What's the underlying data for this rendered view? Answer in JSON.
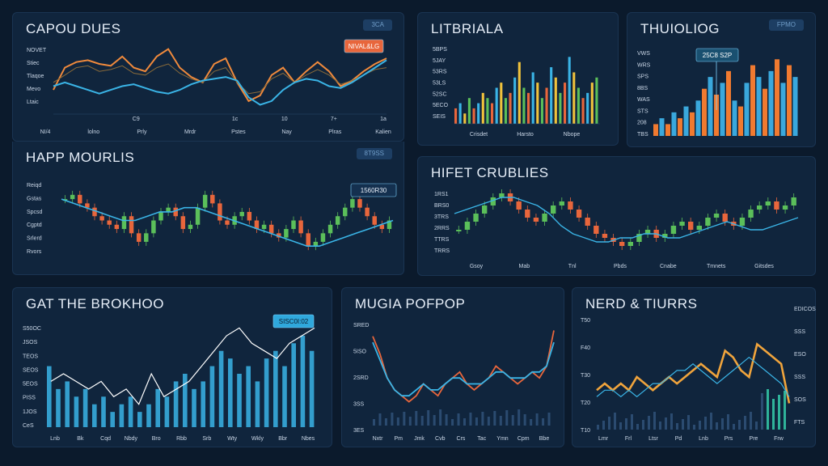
{
  "chart_data": [
    {
      "id": "p1",
      "type": "line",
      "title": "CAPOU DUES",
      "badge": "3CA",
      "callout": "NIVAL&LG",
      "ylabels": [
        "NOVET",
        "Stiec",
        "Tlaqoe",
        "Mevo",
        "Ltaic"
      ],
      "xlabels": [
        "NI/4",
        "lolno",
        "Prly",
        "Mrdr",
        "Pstes",
        "Nay",
        "Plras",
        "Kalien"
      ],
      "icons": [
        "",
        "",
        "C9",
        "",
        "1c",
        "10",
        "7+",
        "1a"
      ],
      "series": [
        {
          "color": "#f08a3c",
          "values": [
            18,
            30,
            33,
            34,
            32,
            31,
            36,
            30,
            28,
            36,
            40,
            30,
            25,
            22,
            32,
            35,
            22,
            12,
            15,
            26,
            30,
            22,
            28,
            33,
            28,
            20,
            23,
            28,
            32,
            35
          ]
        },
        {
          "color": "#8a6b3a",
          "values": [
            22,
            26,
            30,
            31,
            28,
            29,
            31,
            27,
            26,
            30,
            32,
            27,
            24,
            22,
            28,
            30,
            22,
            16,
            17,
            24,
            27,
            22,
            26,
            29,
            26,
            21,
            23,
            26,
            29,
            30
          ]
        },
        {
          "color": "#3ab4e6",
          "values": [
            20,
            22,
            20,
            18,
            16,
            18,
            20,
            21,
            19,
            17,
            16,
            18,
            21,
            23,
            24,
            25,
            23,
            14,
            10,
            12,
            18,
            22,
            24,
            23,
            20,
            19,
            22,
            26,
            30,
            34
          ]
        }
      ]
    },
    {
      "id": "p2",
      "type": "bar",
      "title": "LITBRIALA",
      "badge": "",
      "ylabels": [
        "5BPS",
        "5JAY",
        "53RS",
        "53LS",
        "52SC",
        "5ECO",
        "SEIS"
      ],
      "xlabels": [
        "Crisdet",
        "Harsto",
        "Nbope"
      ],
      "values": [
        3,
        4,
        2,
        5,
        3,
        4,
        6,
        5,
        4,
        7,
        8,
        5,
        6,
        9,
        12,
        7,
        6,
        10,
        8,
        5,
        7,
        11,
        9,
        6,
        8,
        13,
        10,
        7,
        5,
        6,
        8,
        9
      ],
      "colors": [
        "#e8663c",
        "#3ab4e6",
        "#f0c23c",
        "#5bbf5a"
      ]
    },
    {
      "id": "p3",
      "type": "bar",
      "title": "THUIOLIOG",
      "badge": "FPMO",
      "callout": "25C8 S2P",
      "ylabels": [
        "VWS",
        "WRS",
        "SPS",
        "8BS",
        "WAS",
        "STS",
        "208",
        "TBS"
      ],
      "values": [
        2,
        3,
        2,
        4,
        3,
        5,
        4,
        6,
        8,
        10,
        7,
        9,
        11,
        6,
        5,
        9,
        12,
        10,
        8,
        11,
        13,
        9,
        12,
        10
      ],
      "colors": [
        "#f07a30",
        "#3aa8dc"
      ]
    },
    {
      "id": "p4",
      "type": "candlestick",
      "title": "HAPP MOURLIS",
      "badge": "8T9SS",
      "callout": "1560R30",
      "ylabels": [
        "Reiqd",
        "Gstas",
        "Spcsd",
        "Cgptd",
        "Srlerd",
        "Rvors"
      ],
      "candles": [
        14,
        15,
        13,
        12,
        10,
        9,
        8,
        7,
        10,
        6,
        4,
        6,
        9,
        11,
        12,
        10,
        7,
        8,
        12,
        15,
        13,
        9,
        8,
        10,
        11,
        9,
        7,
        8,
        6,
        5,
        7,
        9,
        6,
        3,
        4,
        6,
        8,
        10,
        12,
        14,
        12,
        10,
        8,
        7,
        9
      ],
      "trend": [
        14,
        13,
        12,
        11,
        10,
        9,
        9,
        10,
        11,
        11,
        12,
        12,
        11,
        10,
        9,
        8,
        7,
        6,
        5,
        4,
        3,
        3,
        4,
        5,
        6,
        7,
        8,
        9
      ]
    },
    {
      "id": "p5",
      "type": "candlestick",
      "title": "HIFET CRUBLIES",
      "badge": "",
      "ylabels": [
        "1RS1",
        "BRS0",
        "3TRS",
        "2RRS",
        "TTRS",
        "TRRS"
      ],
      "xlabels": [
        "Gsoy",
        "Mab",
        "Tnl",
        "Pbds",
        "Cnabe",
        "Tmnets",
        "Gitsdes"
      ],
      "candles": [
        6,
        8,
        10,
        12,
        14,
        15,
        13,
        11,
        9,
        8,
        10,
        12,
        13,
        11,
        9,
        7,
        5,
        4,
        3,
        2,
        3,
        5,
        6,
        4,
        5,
        7,
        8,
        6,
        7,
        9,
        10,
        8,
        7,
        9,
        11,
        12,
        13,
        11,
        12,
        14
      ],
      "trend": [
        10,
        11,
        12,
        13,
        14,
        14,
        13,
        12,
        10,
        7,
        5,
        4,
        3,
        3,
        4,
        4,
        5,
        5,
        4,
        4,
        5,
        6,
        7,
        8,
        7,
        6,
        6,
        7,
        8,
        9
      ]
    },
    {
      "id": "p6",
      "type": "bar",
      "title": "GAT THE BROKHOO",
      "badge": "",
      "callout": "SISC0I:02",
      "ylabels": [
        "S50OC",
        "JSOS",
        "TEOS",
        "SEOS",
        "5EOS",
        "PISS",
        "1JOS",
        "CeS"
      ],
      "xlabels": [
        "Lnb",
        "Bk",
        "Cqd",
        "Nbdy",
        "Bro",
        "Rbb",
        "Srb",
        "Wty",
        "Wkly",
        "Bbr",
        "Nbes"
      ],
      "values": [
        8,
        5,
        6,
        4,
        5,
        3,
        4,
        2,
        3,
        4,
        2,
        3,
        5,
        4,
        6,
        7,
        5,
        6,
        8,
        10,
        9,
        7,
        8,
        6,
        9,
        10,
        8,
        11,
        12,
        10
      ],
      "line": [
        6,
        7,
        6,
        5,
        6,
        4,
        5,
        3,
        7,
        4,
        5,
        6,
        8,
        10,
        12,
        13,
        11,
        10,
        9,
        11,
        12,
        13
      ],
      "color": "#3ab4e6"
    },
    {
      "id": "p7",
      "type": "line",
      "title": "MUGIA POFPOP",
      "badge": "",
      "ylabels": [
        "SRED",
        "5ISO",
        "2SRD",
        "3SS",
        "3ES"
      ],
      "xlabels": [
        "Nxtr",
        "Pm",
        "Jmk",
        "Cvb",
        "Crs",
        "Tac",
        "Ymn",
        "Cpm",
        "Bbe"
      ],
      "series": [
        {
          "color": "#e8663c",
          "values": [
            15,
            12,
            8,
            6,
            5,
            4,
            5,
            7,
            6,
            5,
            7,
            8,
            9,
            7,
            6,
            7,
            8,
            10,
            9,
            8,
            7,
            8,
            9,
            8,
            10,
            16
          ]
        },
        {
          "color": "#3ab4e6",
          "values": [
            14,
            11,
            8,
            6,
            5,
            5,
            6,
            7,
            6,
            6,
            7,
            8,
            8,
            7,
            7,
            7,
            8,
            9,
            9,
            8,
            8,
            8,
            9,
            9,
            10,
            14
          ]
        }
      ]
    },
    {
      "id": "p8",
      "type": "line",
      "title": "NERD & TIURRS",
      "badge": "",
      "ylabels": [
        "T50",
        "F40",
        "T30",
        "T20",
        "T10"
      ],
      "rlabels": [
        "EDICOS",
        "SSS",
        "ESO",
        "SSS",
        "SOS",
        "FTS"
      ],
      "xlabels": [
        "Lmr",
        "Frl",
        "Ltsr",
        "Pd",
        "Lnb",
        "Prs",
        "Pre",
        "Frw"
      ],
      "series": [
        {
          "color": "#f0a43c",
          "values": [
            6,
            7,
            6,
            7,
            6,
            8,
            7,
            6,
            7,
            8,
            7,
            8,
            9,
            10,
            9,
            8,
            12,
            11,
            9,
            8,
            13,
            12,
            11,
            10,
            4
          ]
        },
        {
          "color": "#3ab4e6",
          "values": [
            5,
            6,
            6,
            5,
            6,
            5,
            6,
            7,
            7,
            8,
            9,
            9,
            10,
            9,
            8,
            7,
            8,
            9,
            10,
            11,
            10,
            9,
            8,
            7,
            5
          ]
        }
      ]
    }
  ]
}
